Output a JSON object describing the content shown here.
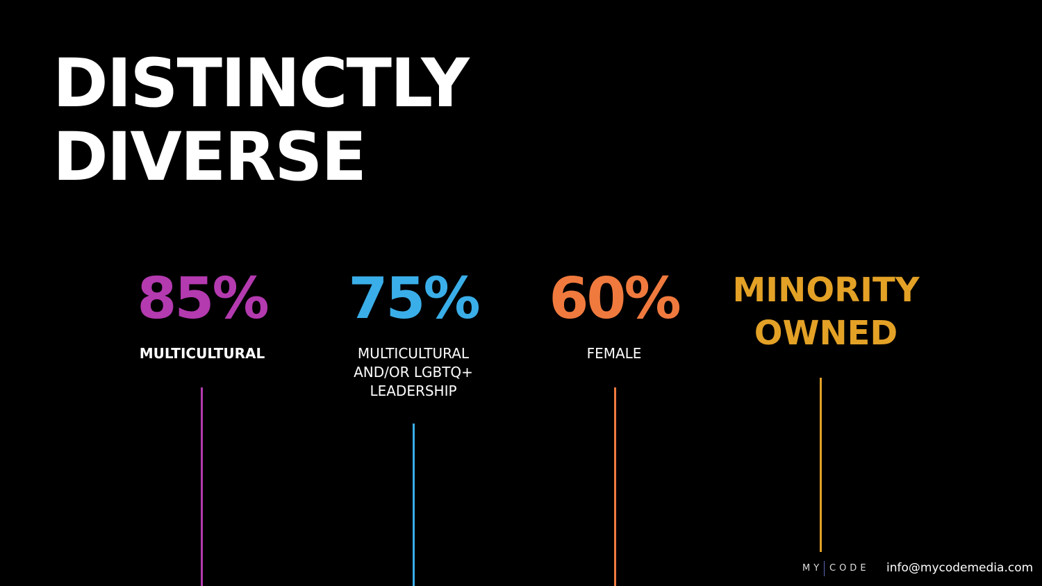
{
  "header": {
    "title": [
      "DISTINCTLY",
      "DIVERSE"
    ]
  },
  "stats": [
    {
      "figure": "85%",
      "caption": [
        "MULTICULTURAL"
      ]
    },
    {
      "figure": "75%",
      "caption": [
        "MULTICULTURAL",
        "AND/OR LGBTQ+",
        "LEADERSHIP"
      ]
    },
    {
      "figure": "60%",
      "caption": [
        "FEMALE"
      ]
    },
    {
      "figure": [
        "MINORITY",
        "OWNED"
      ]
    }
  ],
  "footer": {
    "logo": [
      "MY",
      "CODE"
    ],
    "email": "info@mycodemedia.com"
  }
}
